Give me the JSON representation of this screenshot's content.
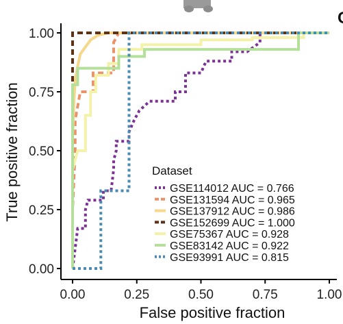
{
  "panel_letter": "C",
  "chart_data": {
    "type": "line",
    "xlabel": "False positive fraction",
    "ylabel": "True positive fraction",
    "xlim": [
      0,
      1
    ],
    "ylim": [
      0,
      1
    ],
    "x_ticks": [
      "0.00",
      "0.25",
      "0.50",
      "0.75",
      "1.00"
    ],
    "y_ticks": [
      "0.00",
      "0.25",
      "0.50",
      "0.75",
      "1.00"
    ],
    "legend_title": "Dataset",
    "legend_position": "bottom-right",
    "series": [
      {
        "name": "GSE114012",
        "label": "GSE114012  AUC = 0.766",
        "color": "#7B3294",
        "dash": "dotted",
        "points": [
          [
            0,
            0
          ],
          [
            0.02,
            0.17
          ],
          [
            0.05,
            0.17
          ],
          [
            0.05,
            0.25
          ],
          [
            0.06,
            0.29
          ],
          [
            0.12,
            0.29
          ],
          [
            0.12,
            0.33
          ],
          [
            0.15,
            0.33
          ],
          [
            0.16,
            0.42
          ],
          [
            0.16,
            0.46
          ],
          [
            0.17,
            0.5
          ],
          [
            0.17,
            0.54
          ],
          [
            0.22,
            0.54
          ],
          [
            0.22,
            0.58
          ],
          [
            0.24,
            0.63
          ],
          [
            0.26,
            0.67
          ],
          [
            0.3,
            0.71
          ],
          [
            0.4,
            0.71
          ],
          [
            0.4,
            0.75
          ],
          [
            0.44,
            0.75
          ],
          [
            0.44,
            0.83
          ],
          [
            0.5,
            0.83
          ],
          [
            0.52,
            0.88
          ],
          [
            0.62,
            0.88
          ],
          [
            0.62,
            0.92
          ],
          [
            0.68,
            0.92
          ],
          [
            0.73,
            0.96
          ],
          [
            0.73,
            1.0
          ],
          [
            1.0,
            1.0
          ]
        ]
      },
      {
        "name": "GSE131594",
        "label": "GSE131594  AUC = 0.965",
        "color": "#E8936A",
        "dash": "dashed",
        "points": [
          [
            0,
            0
          ],
          [
            0,
            0.25
          ],
          [
            0.01,
            0.5
          ],
          [
            0.01,
            0.63
          ],
          [
            0.03,
            0.75
          ],
          [
            0.08,
            0.75
          ],
          [
            0.08,
            0.83
          ],
          [
            0.16,
            0.83
          ],
          [
            0.16,
            0.96
          ],
          [
            0.18,
            1.0
          ],
          [
            1.0,
            1.0
          ]
        ]
      },
      {
        "name": "GSE137912",
        "label": "GSE137912  AUC = 0.986",
        "color": "#F6D78B",
        "dash": "solid",
        "points": [
          [
            0,
            0
          ],
          [
            0,
            0.55
          ],
          [
            0.005,
            0.7
          ],
          [
            0.01,
            0.8
          ],
          [
            0.02,
            0.86
          ],
          [
            0.03,
            0.91
          ],
          [
            0.05,
            0.94
          ],
          [
            0.07,
            0.97
          ],
          [
            0.1,
            0.99
          ],
          [
            0.14,
            1.0
          ],
          [
            1.0,
            1.0
          ]
        ]
      },
      {
        "name": "GSE152699",
        "label": "GSE152699  AUC = 1.000",
        "color": "#5C3317",
        "dash": "dashed",
        "points": [
          [
            0,
            0
          ],
          [
            0,
            1.0
          ],
          [
            1.0,
            1.0
          ]
        ]
      },
      {
        "name": "GSE75367",
        "label": "GSE75367  AUC = 0.928",
        "color": "#F4F2A8",
        "dash": "solid",
        "points": [
          [
            0,
            0
          ],
          [
            0,
            0.42
          ],
          [
            0.02,
            0.5
          ],
          [
            0.05,
            0.5
          ],
          [
            0.05,
            0.65
          ],
          [
            0.07,
            0.65
          ],
          [
            0.07,
            0.75
          ],
          [
            0.09,
            0.75
          ],
          [
            0.09,
            0.82
          ],
          [
            0.14,
            0.82
          ],
          [
            0.14,
            0.87
          ],
          [
            0.18,
            0.87
          ],
          [
            0.18,
            0.93
          ],
          [
            0.27,
            0.93
          ],
          [
            0.27,
            0.95
          ],
          [
            0.5,
            0.95
          ],
          [
            0.5,
            0.97
          ],
          [
            0.7,
            0.97
          ],
          [
            0.7,
            0.98
          ],
          [
            0.9,
            0.98
          ],
          [
            0.9,
            1.0
          ],
          [
            1.0,
            1.0
          ]
        ]
      },
      {
        "name": "GSE83142",
        "label": "GSE83142  AUC = 0.922",
        "color": "#B5E09C",
        "dash": "solid",
        "points": [
          [
            0,
            0
          ],
          [
            0,
            0.78
          ],
          [
            0.02,
            0.78
          ],
          [
            0.02,
            0.85
          ],
          [
            0.18,
            0.85
          ],
          [
            0.18,
            0.9
          ],
          [
            0.28,
            0.9
          ],
          [
            0.28,
            0.93
          ],
          [
            0.88,
            0.93
          ],
          [
            0.88,
            1.0
          ],
          [
            1.0,
            1.0
          ]
        ]
      },
      {
        "name": "GSE93991",
        "label": "GSE93991  AUC = 0.815",
        "color": "#4A8AB0",
        "dash": "dotted",
        "points": [
          [
            0,
            0
          ],
          [
            0.11,
            0
          ],
          [
            0.11,
            0.33
          ],
          [
            0.22,
            0.33
          ],
          [
            0.22,
            1.0
          ],
          [
            1.0,
            1.0
          ]
        ]
      }
    ]
  }
}
